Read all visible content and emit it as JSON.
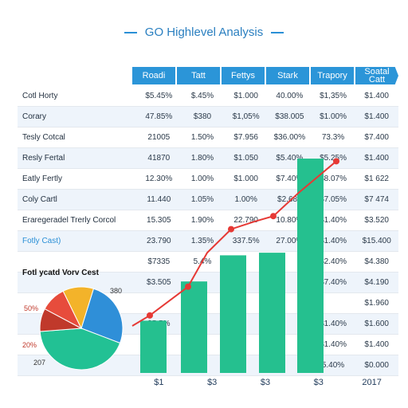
{
  "title": "GO Highlevel Analysis",
  "header": [
    "Roadi",
    "Tatt",
    "Fettys",
    "Stark",
    "Trapory",
    "Soatal Catt"
  ],
  "rows": [
    {
      "label": "Cotl Horty",
      "cells": [
        "$5.45%",
        "$.45%",
        "$1.000",
        "40.00%",
        "$1,35%",
        "$1.400"
      ]
    },
    {
      "label": "Corary",
      "cells": [
        "47.85%",
        "$380",
        "$1,05%",
        "$38.005",
        "$1.00%",
        "$1.400"
      ]
    },
    {
      "label": "Tesly Cotcal",
      "cells": [
        "21005",
        "1.50%",
        "$7.956",
        "$36.00%",
        "73.3%",
        "$7.400"
      ]
    },
    {
      "label": "Resly Fertal",
      "cells": [
        "41870",
        "1.80%",
        "$1.050",
        "$5.40%",
        "$5.25%",
        "$1.400"
      ]
    },
    {
      "label": "Eatly Fertly",
      "cells": [
        "12.30%",
        "1.00%",
        "$1.000",
        "$7.40%",
        "$8.07%",
        "$1 622"
      ]
    },
    {
      "label": "Coly Cartl",
      "cells": [
        "11.440",
        "1.05%",
        "1.00%",
        "$2.685",
        "$7.05%",
        "$7 474"
      ]
    },
    {
      "label": "Eraregeradel Trerly Corcol",
      "cells": [
        "15.305",
        "1.90%",
        "22.790",
        "10.80%",
        "$1.40%",
        "$3.520"
      ]
    },
    {
      "label": "Fotly Cast)",
      "cells": [
        "23.790",
        "1.35%",
        "337.5%",
        "27.00%",
        "$1.40%",
        "$15.400"
      ]
    },
    {
      "label": "",
      "cells": [
        "$7335",
        "5.4%",
        "",
        "",
        "$2.40%",
        "$4.380"
      ]
    },
    {
      "label": "",
      "cells": [
        "$3.505",
        "",
        "",
        "",
        "$7.40%",
        "$4.190"
      ]
    },
    {
      "label": "",
      "cells": [
        "",
        "",
        "",
        "",
        "",
        "$1.960"
      ]
    },
    {
      "label": "",
      "cells": [
        "$5.5%",
        "",
        "",
        "",
        "$1.40%",
        "$1.600"
      ]
    },
    {
      "label": "",
      "cells": [
        "",
        "",
        "",
        "",
        "$1.40%",
        "$1.400"
      ]
    },
    {
      "label": "",
      "cells": [
        "",
        "",
        "",
        "",
        "5.40%",
        "$0.000"
      ]
    }
  ],
  "pie_title": "Fotl ycatd Vorv Cest",
  "pie_labels": [
    "380",
    "50%",
    "20%",
    "207"
  ],
  "chart_data": {
    "type": "bar",
    "categories": [
      "$1",
      "$3",
      "$3",
      "$3",
      "2017"
    ],
    "series": [
      {
        "values": [
          20,
          35,
          45,
          46,
          82
        ]
      },
      {
        "values": [
          18,
          34,
          55,
          60,
          81
        ]
      }
    ],
    "ylim": [
      0,
      100
    ],
    "line_points": [
      18,
      22,
      33,
      46,
      55,
      58,
      60,
      69,
      81
    ],
    "pie": [
      {
        "value": 0.26,
        "color": "#2f8fd8"
      },
      {
        "value": 0.43,
        "color": "#22c194"
      },
      {
        "value": 0.09,
        "color": "#c0392b"
      },
      {
        "value": 0.1,
        "color": "#e74c3c"
      },
      {
        "value": 0.12,
        "color": "#f3b32a"
      }
    ],
    "colors": {
      "bar": "#25c08f",
      "line": "#e63935"
    }
  }
}
